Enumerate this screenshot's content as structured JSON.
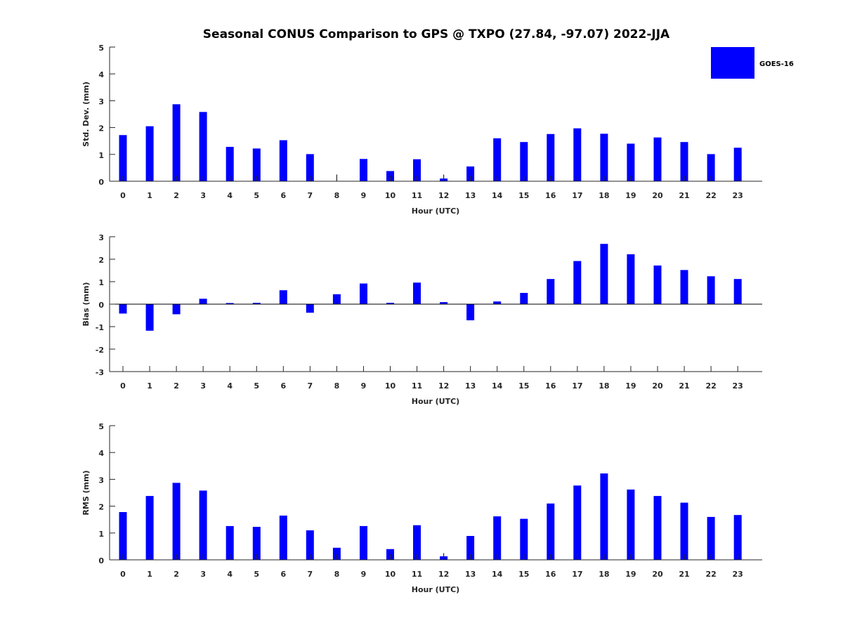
{
  "title": "Seasonal CONUS Comparison to GPS @ TXPO (27.84, -97.07) 2022-JJA",
  "legend": {
    "label": "GOES-16",
    "color": "#0000ff"
  },
  "chart_data": [
    {
      "type": "bar",
      "categories": [
        "0",
        "1",
        "2",
        "3",
        "4",
        "5",
        "6",
        "7",
        "8",
        "9",
        "10",
        "11",
        "12",
        "13",
        "14",
        "15",
        "16",
        "17",
        "18",
        "19",
        "20",
        "21",
        "22",
        "23"
      ],
      "series": [
        {
          "name": "GOES-16",
          "values": [
            1.72,
            2.05,
            2.87,
            2.58,
            1.28,
            1.22,
            1.53,
            1.01,
            0.0,
            0.83,
            0.38,
            0.82,
            0.1,
            0.55,
            1.6,
            1.46,
            1.76,
            1.97,
            1.77,
            1.4,
            1.63,
            1.46,
            1.01,
            1.25
          ]
        }
      ],
      "error_markers": [
        {
          "category": "8",
          "value": 0.25
        },
        {
          "category": "12",
          "value": 0.25
        }
      ],
      "xlabel": "Hour (UTC)",
      "ylabel": "Std. Dev. (mm)",
      "ylim": [
        0,
        5
      ],
      "yticks": [
        "0",
        "1",
        "2",
        "3",
        "4",
        "5"
      ],
      "color": "#0000ff"
    },
    {
      "type": "bar",
      "categories": [
        "0",
        "1",
        "2",
        "3",
        "4",
        "5",
        "6",
        "7",
        "8",
        "9",
        "10",
        "11",
        "12",
        "13",
        "14",
        "15",
        "16",
        "17",
        "18",
        "19",
        "20",
        "21",
        "22",
        "23"
      ],
      "series": [
        {
          "name": "GOES-16",
          "values": [
            -0.42,
            -1.18,
            -0.45,
            0.24,
            0.05,
            0.06,
            0.62,
            -0.38,
            0.44,
            0.92,
            0.06,
            0.96,
            0.09,
            -0.72,
            0.12,
            0.5,
            1.12,
            1.92,
            2.68,
            2.22,
            1.72,
            1.52,
            1.24,
            1.12
          ]
        }
      ],
      "xlabel": "Hour (UTC)",
      "ylabel": "Bias (mm)",
      "ylim": [
        -3,
        3
      ],
      "yticks": [
        "-3",
        "-2",
        "-1",
        "0",
        "1",
        "2",
        "3"
      ],
      "color": "#0000ff"
    },
    {
      "type": "bar",
      "categories": [
        "0",
        "1",
        "2",
        "3",
        "4",
        "5",
        "6",
        "7",
        "8",
        "9",
        "10",
        "11",
        "12",
        "13",
        "14",
        "15",
        "16",
        "17",
        "18",
        "19",
        "20",
        "21",
        "22",
        "23"
      ],
      "series": [
        {
          "name": "GOES-16",
          "values": [
            1.78,
            2.38,
            2.87,
            2.58,
            1.26,
            1.23,
            1.65,
            1.1,
            0.45,
            1.26,
            0.4,
            1.29,
            0.13,
            0.89,
            1.62,
            1.53,
            2.1,
            2.77,
            3.22,
            2.62,
            2.38,
            2.13,
            1.6,
            1.67
          ]
        }
      ],
      "error_markers": [
        {
          "category": "12",
          "value": 0.25
        }
      ],
      "xlabel": "Hour (UTC)",
      "ylabel": "RMS (mm)",
      "ylim": [
        0,
        5
      ],
      "yticks": [
        "0",
        "1",
        "2",
        "3",
        "4",
        "5"
      ],
      "color": "#0000ff"
    }
  ]
}
